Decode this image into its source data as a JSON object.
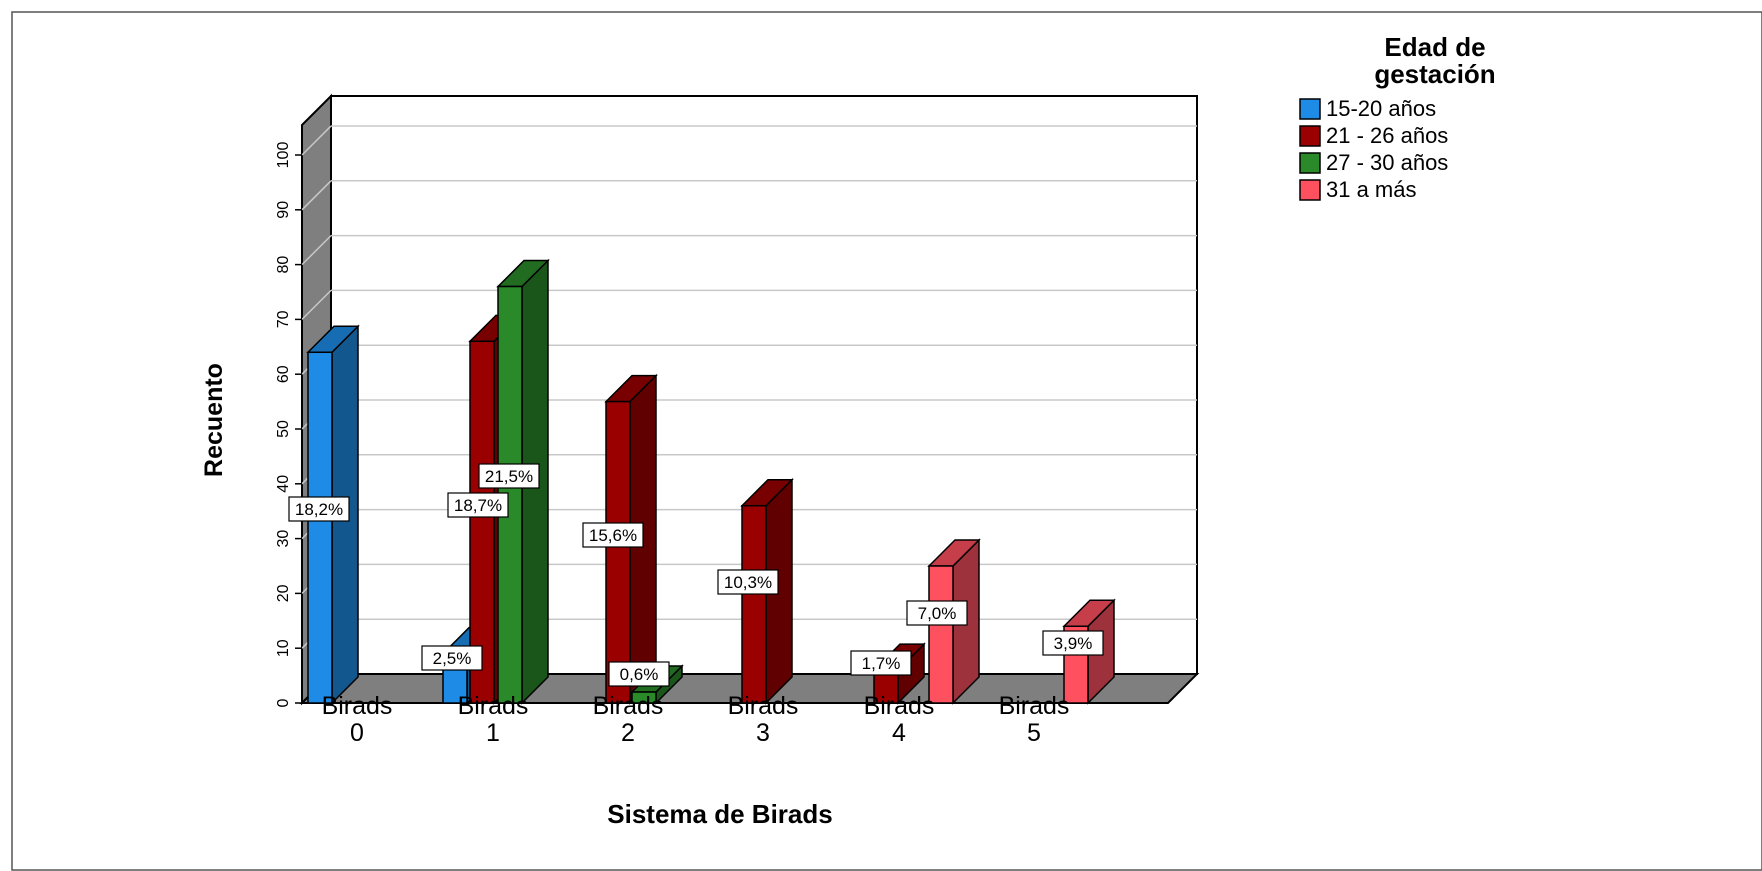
{
  "chart_data": {
    "type": "bar",
    "title": "",
    "xlabel": "Sistema de Birads",
    "ylabel": "Recuento",
    "ylim": [
      0,
      100
    ],
    "yticks": [
      0,
      10,
      20,
      30,
      40,
      50,
      60,
      70,
      80,
      90,
      100
    ],
    "grid": true,
    "legend_position": "top-right",
    "legend_title": "Edad de gestación",
    "categories": [
      [
        "Birads",
        "0"
      ],
      [
        "Birads",
        "1"
      ],
      [
        "Birads",
        "2"
      ],
      [
        "Birads",
        "3"
      ],
      [
        "Birads",
        "4"
      ],
      [
        "Birads",
        "5"
      ]
    ],
    "series": [
      {
        "name": "15-20 años",
        "color": "#1e8ce6",
        "values": [
          64,
          9,
          null,
          null,
          null,
          null
        ],
        "labels": [
          "18,2%",
          "2,5%",
          null,
          null,
          null,
          null
        ]
      },
      {
        "name": "21 - 26 años",
        "color": "#9b0000",
        "values": [
          null,
          66,
          55,
          36,
          6,
          null
        ],
        "labels": [
          null,
          "18,7%",
          "15,6%",
          "10,3%",
          "1,7%",
          null
        ]
      },
      {
        "name": "27 - 30 años",
        "color": "#2a8a2a",
        "values": [
          null,
          76,
          2,
          null,
          null,
          null
        ],
        "labels": [
          null,
          "21,5%",
          "0,6%",
          null,
          null,
          null
        ]
      },
      {
        "name": "31 a más",
        "color": "#ff5060",
        "values": [
          null,
          null,
          null,
          null,
          25,
          14
        ],
        "labels": [
          null,
          null,
          null,
          null,
          "7,0%",
          "3,9%"
        ]
      }
    ]
  }
}
